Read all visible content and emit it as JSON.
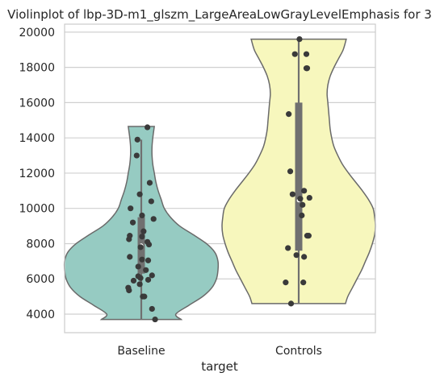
{
  "chart_data": {
    "type": "violin",
    "title": "Violinplot of lbp-3D-m1_glszm_LargeAreaLowGrayLevelEmphasis for 3",
    "xlabel": "target",
    "ylabel": "",
    "categories": [
      "Baseline",
      "Controls"
    ],
    "ylim": [
      2950,
      20450
    ],
    "yticks": [
      4000,
      6000,
      8000,
      10000,
      12000,
      14000,
      16000,
      18000,
      20000
    ],
    "ytick_labels": [
      "4000",
      "6000",
      "8000",
      "10000",
      "12000",
      "14000",
      "16000",
      "18000",
      "20000"
    ],
    "grid": true,
    "colors": {
      "Baseline": "#96cbc2",
      "Controls": "#f7f7bd",
      "outline": "#6a6a6a",
      "box": "#707070",
      "points": "#3a3a3a",
      "grid": "#d0d0d0",
      "frame": "#cccccc"
    },
    "violins": [
      {
        "category": "Baseline",
        "min": 3700,
        "max": 14650,
        "q1": 6300,
        "median": 7900,
        "q3": 9500,
        "whisker_low": 3700,
        "whisker_high": 13900,
        "density": [
          [
            3700,
            0.52
          ],
          [
            4000,
            0.45
          ],
          [
            4500,
            0.62
          ],
          [
            5000,
            0.8
          ],
          [
            5500,
            0.92
          ],
          [
            6000,
            0.98
          ],
          [
            6500,
            1.0
          ],
          [
            7000,
            1.0
          ],
          [
            7500,
            0.96
          ],
          [
            8000,
            0.85
          ],
          [
            8500,
            0.68
          ],
          [
            9000,
            0.5
          ],
          [
            9500,
            0.38
          ],
          [
            10000,
            0.3
          ],
          [
            10500,
            0.26
          ],
          [
            11000,
            0.22
          ],
          [
            11500,
            0.19
          ],
          [
            12000,
            0.17
          ],
          [
            12500,
            0.15
          ],
          [
            13000,
            0.14
          ],
          [
            13500,
            0.14
          ],
          [
            14000,
            0.15
          ],
          [
            14650,
            0.17
          ]
        ],
        "points": [
          [
            0.08,
            14600
          ],
          [
            -0.05,
            13900
          ],
          [
            -0.06,
            13000
          ],
          [
            0.11,
            11450
          ],
          [
            -0.02,
            10800
          ],
          [
            0.13,
            10400
          ],
          [
            -0.14,
            10000
          ],
          [
            0.01,
            9600
          ],
          [
            0.16,
            9400
          ],
          [
            -0.11,
            9200
          ],
          [
            0.03,
            8700
          ],
          [
            -0.15,
            8450
          ],
          [
            0.01,
            8400
          ],
          [
            -0.16,
            8250
          ],
          [
            0.08,
            8100
          ],
          [
            0.1,
            7950
          ],
          [
            -0.01,
            7800
          ],
          [
            -0.15,
            7250
          ],
          [
            0.01,
            7100
          ],
          [
            0.09,
            7050
          ],
          [
            -0.04,
            6700
          ],
          [
            0.06,
            6500
          ],
          [
            0.14,
            6200
          ],
          [
            -0.04,
            6150
          ],
          [
            -0.01,
            6050
          ],
          [
            0.09,
            5950
          ],
          [
            -0.1,
            5900
          ],
          [
            -0.02,
            5700
          ],
          [
            -0.17,
            5500
          ],
          [
            -0.16,
            5350
          ],
          [
            0.04,
            5000
          ],
          [
            0.02,
            5000
          ],
          [
            0.14,
            4300
          ],
          [
            0.18,
            3700
          ]
        ]
      },
      {
        "category": "Controls",
        "min": 4600,
        "max": 19600,
        "q1": 7600,
        "median": 10450,
        "q3": 16000,
        "whisker_low": 4600,
        "whisker_high": 19600,
        "density": [
          [
            4600,
            0.61
          ],
          [
            5000,
            0.64
          ],
          [
            5500,
            0.7
          ],
          [
            6000,
            0.76
          ],
          [
            6500,
            0.82
          ],
          [
            7000,
            0.87
          ],
          [
            7500,
            0.92
          ],
          [
            8000,
            0.96
          ],
          [
            8500,
            0.99
          ],
          [
            9000,
            1.0
          ],
          [
            9500,
            0.99
          ],
          [
            10000,
            0.97
          ],
          [
            10500,
            0.91
          ],
          [
            11000,
            0.83
          ],
          [
            11500,
            0.74
          ],
          [
            12000,
            0.65
          ],
          [
            12500,
            0.57
          ],
          [
            13000,
            0.51
          ],
          [
            13500,
            0.46
          ],
          [
            14000,
            0.43
          ],
          [
            14500,
            0.41
          ],
          [
            15000,
            0.4
          ],
          [
            15500,
            0.39
          ],
          [
            16000,
            0.38
          ],
          [
            16500,
            0.37
          ],
          [
            17000,
            0.38
          ],
          [
            17500,
            0.41
          ],
          [
            18000,
            0.46
          ],
          [
            18500,
            0.52
          ],
          [
            19000,
            0.58
          ],
          [
            19600,
            0.62
          ]
        ],
        "points": [
          [
            0.01,
            19600
          ],
          [
            -0.05,
            18750
          ],
          [
            0.1,
            18750
          ],
          [
            0.1,
            17950
          ],
          [
            0.11,
            17950
          ],
          [
            -0.13,
            15350
          ],
          [
            -0.11,
            12100
          ],
          [
            -0.08,
            10800
          ],
          [
            0.07,
            11000
          ],
          [
            0.14,
            10600
          ],
          [
            0.02,
            10550
          ],
          [
            0.05,
            10200
          ],
          [
            0.04,
            9600
          ],
          [
            0.11,
            8450
          ],
          [
            0.13,
            8450
          ],
          [
            -0.14,
            7750
          ],
          [
            -0.03,
            7350
          ],
          [
            0.07,
            7250
          ],
          [
            -0.17,
            5800
          ],
          [
            0.06,
            5800
          ],
          [
            -0.1,
            4600
          ]
        ]
      }
    ]
  }
}
